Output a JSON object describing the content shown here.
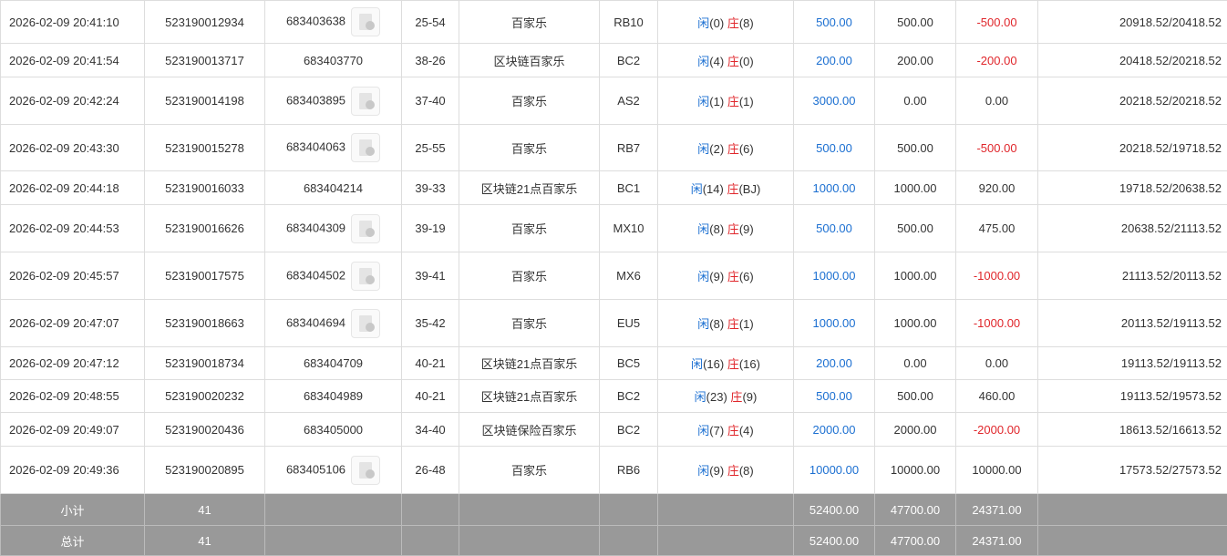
{
  "colors": {
    "player": "#1b6fd1",
    "banker": "#e0262b",
    "bet": "#1b6fd1",
    "loss": "#e0262b",
    "summary_bg": "#999999"
  },
  "labels": {
    "player": "闲",
    "banker": "庄"
  },
  "rows": [
    {
      "time": "2026-02-09 20:41:10",
      "order": "523190012934",
      "round": "683403638",
      "thumb": true,
      "table": "25-54",
      "game": "百家乐",
      "room": "RB10",
      "p": "(0)",
      "b": "(8)",
      "bet": "500.00",
      "valid": "500.00",
      "win": "-500.00",
      "balance": "20918.52/20418.52"
    },
    {
      "time": "2026-02-09 20:41:54",
      "order": "523190013717",
      "round": "683403770",
      "thumb": false,
      "table": "38-26",
      "game": "区块链百家乐",
      "room": "BC2",
      "p": "(4)",
      "b": "(0)",
      "bet": "200.00",
      "valid": "200.00",
      "win": "-200.00",
      "balance": "20418.52/20218.52"
    },
    {
      "time": "2026-02-09 20:42:24",
      "order": "523190014198",
      "round": "683403895",
      "thumb": true,
      "table": "37-40",
      "game": "百家乐",
      "room": "AS2",
      "p": "(1)",
      "b": "(1)",
      "bet": "3000.00",
      "valid": "0.00",
      "win": "0.00",
      "balance": "20218.52/20218.52"
    },
    {
      "time": "2026-02-09 20:43:30",
      "order": "523190015278",
      "round": "683404063",
      "thumb": true,
      "table": "25-55",
      "game": "百家乐",
      "room": "RB7",
      "p": "(2)",
      "b": "(6)",
      "bet": "500.00",
      "valid": "500.00",
      "win": "-500.00",
      "balance": "20218.52/19718.52"
    },
    {
      "time": "2026-02-09 20:44:18",
      "order": "523190016033",
      "round": "683404214",
      "thumb": false,
      "table": "39-33",
      "game": "区块链21点百家乐",
      "room": "BC1",
      "p": "(14)",
      "b": "(BJ)",
      "bet": "1000.00",
      "valid": "1000.00",
      "win": "920.00",
      "balance": "19718.52/20638.52"
    },
    {
      "time": "2026-02-09 20:44:53",
      "order": "523190016626",
      "round": "683404309",
      "thumb": true,
      "table": "39-19",
      "game": "百家乐",
      "room": "MX10",
      "p": "(8)",
      "b": "(9)",
      "bet": "500.00",
      "valid": "500.00",
      "win": "475.00",
      "balance": "20638.52/21113.52"
    },
    {
      "time": "2026-02-09 20:45:57",
      "order": "523190017575",
      "round": "683404502",
      "thumb": true,
      "table": "39-41",
      "game": "百家乐",
      "room": "MX6",
      "p": "(9)",
      "b": "(6)",
      "bet": "1000.00",
      "valid": "1000.00",
      "win": "-1000.00",
      "balance": "21113.52/20113.52"
    },
    {
      "time": "2026-02-09 20:47:07",
      "order": "523190018663",
      "round": "683404694",
      "thumb": true,
      "table": "35-42",
      "game": "百家乐",
      "room": "EU5",
      "p": "(8)",
      "b": "(1)",
      "bet": "1000.00",
      "valid": "1000.00",
      "win": "-1000.00",
      "balance": "20113.52/19113.52"
    },
    {
      "time": "2026-02-09 20:47:12",
      "order": "523190018734",
      "round": "683404709",
      "thumb": false,
      "table": "40-21",
      "game": "区块链21点百家乐",
      "room": "BC5",
      "p": "(16)",
      "b": "(16)",
      "bet": "200.00",
      "valid": "0.00",
      "win": "0.00",
      "balance": "19113.52/19113.52"
    },
    {
      "time": "2026-02-09 20:48:55",
      "order": "523190020232",
      "round": "683404989",
      "thumb": false,
      "table": "40-21",
      "game": "区块链21点百家乐",
      "room": "BC2",
      "p": "(23)",
      "b": "(9)",
      "bet": "500.00",
      "valid": "500.00",
      "win": "460.00",
      "balance": "19113.52/19573.52"
    },
    {
      "time": "2026-02-09 20:49:07",
      "order": "523190020436",
      "round": "683405000",
      "thumb": false,
      "table": "34-40",
      "game": "区块链保险百家乐",
      "room": "BC2",
      "p": "(7)",
      "b": "(4)",
      "bet": "2000.00",
      "valid": "2000.00",
      "win": "-2000.00",
      "balance": "18613.52/16613.52"
    },
    {
      "time": "2026-02-09 20:49:36",
      "order": "523190020895",
      "round": "683405106",
      "thumb": true,
      "table": "26-48",
      "game": "百家乐",
      "room": "RB6",
      "p": "(9)",
      "b": "(8)",
      "bet": "10000.00",
      "valid": "10000.00",
      "win": "10000.00",
      "balance": "17573.52/27573.52"
    }
  ],
  "summary": [
    {
      "label": "小计",
      "count": "41",
      "bet": "52400.00",
      "valid": "47700.00",
      "win": "24371.00"
    },
    {
      "label": "总计",
      "count": "41",
      "bet": "52400.00",
      "valid": "47700.00",
      "win": "24371.00"
    }
  ]
}
